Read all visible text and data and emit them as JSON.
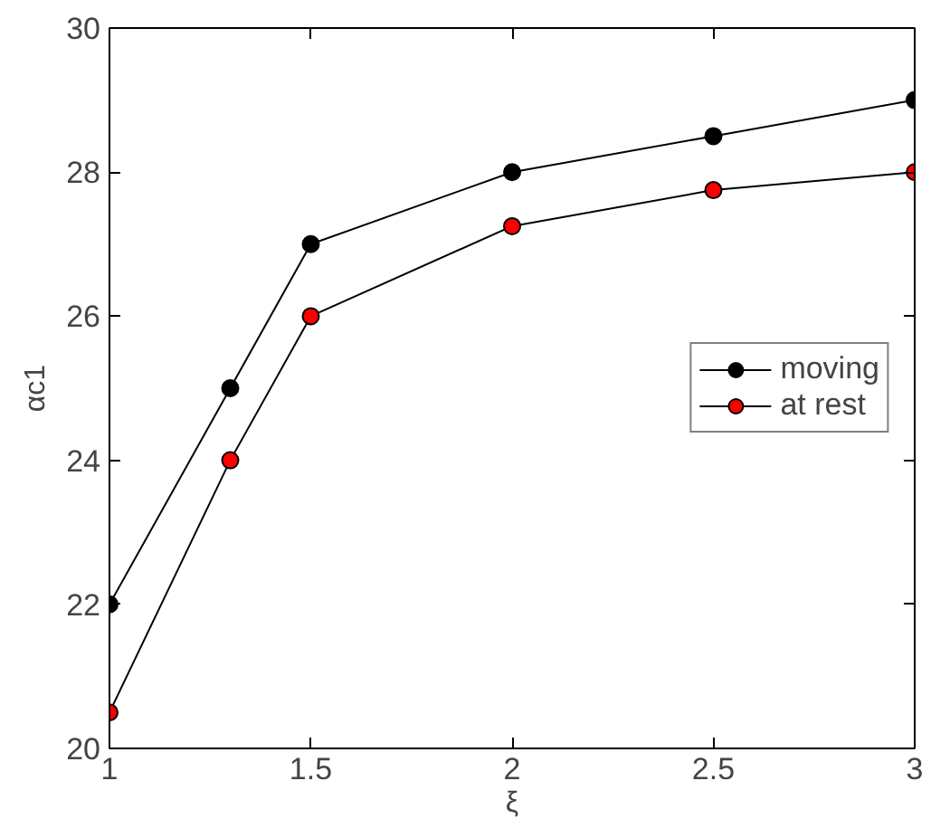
{
  "chart_data": {
    "type": "line",
    "xlabel": "ξ",
    "ylabel": "αc1",
    "xlim": [
      1,
      3
    ],
    "ylim": [
      20,
      30
    ],
    "xticks": [
      1,
      1.5,
      2,
      2.5,
      3
    ],
    "yticks": [
      20,
      22,
      24,
      26,
      28,
      30
    ],
    "x": [
      1,
      1.3,
      1.5,
      2,
      2.5,
      3
    ],
    "series": [
      {
        "name": "moving",
        "color": "#000000",
        "values": [
          22,
          25,
          27,
          28,
          28.5,
          29
        ]
      },
      {
        "name": "at rest",
        "color": "#ff0000",
        "values": [
          20.5,
          24,
          26,
          27.25,
          27.75,
          28
        ]
      }
    ],
    "marker": "circle",
    "line_style": "solid",
    "grid": false,
    "legend": "right"
  }
}
